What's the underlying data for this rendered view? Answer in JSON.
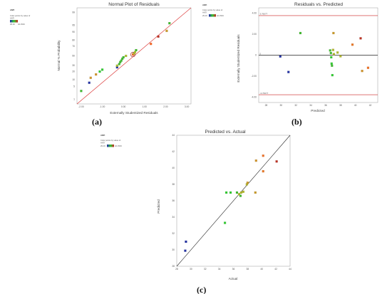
{
  "legend": {
    "heading": "ANTI",
    "color_points_by": "Color points by value of",
    "variable": "ANTI",
    "min_label": "29.16",
    "max_label": "42.1533"
  },
  "colors": {
    "fit_line": "#dc3b3b",
    "limit_line": "#cc2222",
    "zero_line": "#222222",
    "plot_border": "#999999",
    "low": "#2020b0",
    "mid": "#33cc33",
    "high": "#cc2020"
  },
  "panel_labels": {
    "a": "(a)",
    "b": "(b)",
    "c": "(c)"
  },
  "chart_data": [
    {
      "id": "a",
      "type": "scatter",
      "title": "Normal Plot of Residuals",
      "xlabel": "Externally Studentized Residuals",
      "ylabel": "Normal % Probability",
      "xlim": [
        -2.2,
        3.2
      ],
      "x_ticks": [
        "-2.00",
        "-1.00",
        "0.00",
        "1.00",
        "2.00",
        "3.00"
      ],
      "y_ticks": [
        "1",
        "5",
        "10",
        "20",
        "30",
        "50",
        "70",
        "80",
        "90",
        "95",
        "99"
      ],
      "y_scale": "normal-probability",
      "fit_line": {
        "from": [
          -2.2,
          0.5
        ],
        "to": [
          3.2,
          99.5
        ]
      },
      "points": [
        {
          "x": -2.0,
          "y": 3,
          "c": 0.55
        },
        {
          "x": -1.62,
          "y": 7.5,
          "c": 0.05
        },
        {
          "x": -1.55,
          "y": 12,
          "c": 0.72
        },
        {
          "x": -1.3,
          "y": 16,
          "c": 0.72
        },
        {
          "x": -1.12,
          "y": 20,
          "c": 0.5
        },
        {
          "x": -1.0,
          "y": 23,
          "c": 0.5
        },
        {
          "x": -0.3,
          "y": 27,
          "c": 0.05
        },
        {
          "x": -0.3,
          "y": 30,
          "c": 0.6
        },
        {
          "x": -0.2,
          "y": 33,
          "c": 0.55
        },
        {
          "x": -0.15,
          "y": 37,
          "c": 0.55
        },
        {
          "x": -0.1,
          "y": 40,
          "c": 0.55
        },
        {
          "x": -0.05,
          "y": 44,
          "c": 0.55
        },
        {
          "x": 0.0,
          "y": 47,
          "c": 0.55
        },
        {
          "x": 0.12,
          "y": 50,
          "c": 0.6
        },
        {
          "x": 0.45,
          "y": 53,
          "c": 0.85
        },
        {
          "x": 0.5,
          "y": 55,
          "c": 0.62
        },
        {
          "x": 0.55,
          "y": 58,
          "c": 0.6
        },
        {
          "x": 0.6,
          "y": 62,
          "c": 0.55
        },
        {
          "x": 1.3,
          "y": 74,
          "c": 0.85
        },
        {
          "x": 1.65,
          "y": 85,
          "c": 0.95
        },
        {
          "x": 2.05,
          "y": 91,
          "c": 0.7
        },
        {
          "x": 2.18,
          "y": 96,
          "c": 0.55
        }
      ]
    },
    {
      "id": "b",
      "type": "scatter",
      "title": "Residuals vs. Predicted",
      "xlabel": "Predicted",
      "ylabel": "Externally Studentized Residuals",
      "xlim": [
        27,
        43
      ],
      "ylim": [
        -4.5,
        4.5
      ],
      "x_ticks": [
        "28",
        "30",
        "32",
        "34",
        "36",
        "38",
        "40",
        "42"
      ],
      "y_ticks": [
        "-4.00",
        "-2.00",
        "0",
        "2.00",
        "4.00"
      ],
      "limit_labels": {
        "upper": "3.76077",
        "lower": "-3.76077",
        "zero": "0"
      },
      "limits": [
        3.76077,
        -3.76077
      ],
      "points": [
        {
          "x": 29.9,
          "y": -0.12,
          "c": 0.05
        },
        {
          "x": 31.0,
          "y": -1.6,
          "c": 0.05
        },
        {
          "x": 32.6,
          "y": 2.1,
          "c": 0.55
        },
        {
          "x": 36.6,
          "y": 0.45,
          "c": 0.55
        },
        {
          "x": 36.7,
          "y": 0.2,
          "c": 0.55
        },
        {
          "x": 36.75,
          "y": -0.2,
          "c": 0.5
        },
        {
          "x": 36.8,
          "y": -0.8,
          "c": 0.5
        },
        {
          "x": 36.85,
          "y": -1.0,
          "c": 0.55
        },
        {
          "x": 36.9,
          "y": -1.9,
          "c": 0.5
        },
        {
          "x": 37.0,
          "y": 0.5,
          "c": 0.62
        },
        {
          "x": 37.05,
          "y": 2.1,
          "c": 0.7
        },
        {
          "x": 37.1,
          "y": 0.1,
          "c": 0.62
        },
        {
          "x": 37.6,
          "y": 0.25,
          "c": 0.62
        },
        {
          "x": 38.0,
          "y": -0.1,
          "c": 0.62
        },
        {
          "x": 39.6,
          "y": 1.0,
          "c": 0.8
        },
        {
          "x": 40.7,
          "y": 1.6,
          "c": 0.95
        },
        {
          "x": 40.9,
          "y": -1.5,
          "c": 0.72
        },
        {
          "x": 41.7,
          "y": -1.2,
          "c": 0.82
        }
      ]
    },
    {
      "id": "c",
      "type": "scatter",
      "title": "Predicted vs. Actual",
      "xlabel": "Actual",
      "ylabel": "Predicted",
      "xlim": [
        28,
        44
      ],
      "ylim": [
        28,
        44
      ],
      "x_ticks": [
        "28",
        "30",
        "32",
        "34",
        "36",
        "38",
        "40",
        "42",
        "44"
      ],
      "y_ticks": [
        "28",
        "30",
        "32",
        "34",
        "36",
        "38",
        "40",
        "42",
        "44"
      ],
      "fit_line": {
        "from": [
          28,
          28
        ],
        "to": [
          44,
          44
        ]
      },
      "points": [
        {
          "x": 29.2,
          "y": 29.9,
          "c": 0.05
        },
        {
          "x": 29.3,
          "y": 31.0,
          "c": 0.05
        },
        {
          "x": 34.8,
          "y": 33.3,
          "c": 0.5
        },
        {
          "x": 35.0,
          "y": 37.0,
          "c": 0.5
        },
        {
          "x": 35.6,
          "y": 37.0,
          "c": 0.5
        },
        {
          "x": 36.5,
          "y": 37.0,
          "c": 0.55
        },
        {
          "x": 36.8,
          "y": 36.8,
          "c": 0.62
        },
        {
          "x": 37.0,
          "y": 36.6,
          "c": 0.55
        },
        {
          "x": 37.1,
          "y": 37.0,
          "c": 0.62
        },
        {
          "x": 37.4,
          "y": 37.1,
          "c": 0.62
        },
        {
          "x": 37.9,
          "y": 38.0,
          "c": 0.62
        },
        {
          "x": 38.0,
          "y": 38.2,
          "c": 0.7
        },
        {
          "x": 39.1,
          "y": 37.0,
          "c": 0.7
        },
        {
          "x": 39.2,
          "y": 40.9,
          "c": 0.72
        },
        {
          "x": 40.2,
          "y": 39.6,
          "c": 0.8
        },
        {
          "x": 40.2,
          "y": 41.5,
          "c": 0.82
        },
        {
          "x": 42.1,
          "y": 40.8,
          "c": 0.95
        }
      ]
    }
  ]
}
